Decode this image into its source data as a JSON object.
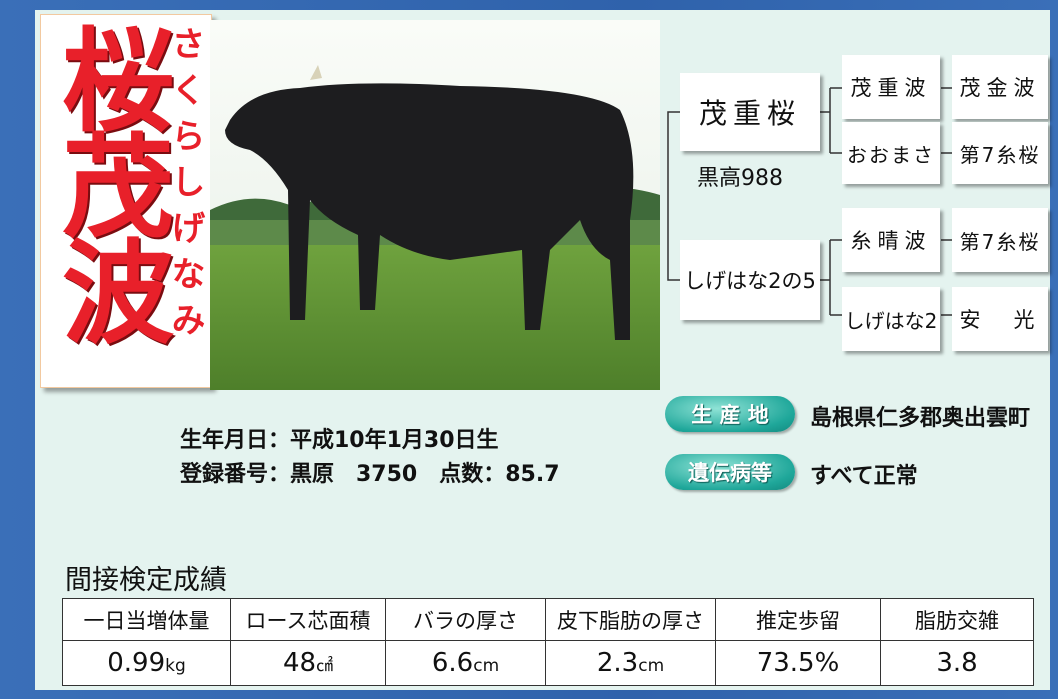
{
  "name": {
    "kanji": "桜茂波",
    "kana": "さくらしげなみ"
  },
  "pedigree": {
    "sire": {
      "name": "茂重桜",
      "registration": "黒高988",
      "parents": [
        {
          "name": "茂重波",
          "sire": "茂金波"
        },
        {
          "name": "おおまさ",
          "sire": "第7糸桜"
        }
      ]
    },
    "dam": {
      "name": "しげはな2の5",
      "parents": [
        {
          "name": "糸晴波",
          "sire": "第7糸桜"
        },
        {
          "name": "しげはな2",
          "sire": "安　光"
        }
      ]
    }
  },
  "info": {
    "birth": "生年月日：平成10年1月30日生",
    "registration": "登録番号：黒原　3750　点数：85.7",
    "origin": {
      "label": "生 産 地",
      "value": "島根県仁多郡奥出雲町"
    },
    "genetic": {
      "label": "遺伝病等",
      "value": "すべて正常"
    }
  },
  "table": {
    "title": "間接検定成績",
    "headers": [
      "一日当増体量",
      "ロース芯面積",
      "バラの厚さ",
      "皮下脂肪の厚さ",
      "推定歩留",
      "脂肪交雑"
    ],
    "cells": [
      [
        "0.99",
        "kg"
      ],
      [
        "48",
        "㎠"
      ],
      [
        "6.6",
        "cm"
      ],
      [
        "2.3",
        "cm"
      ],
      [
        "73.5%"
      ],
      [
        "3.8"
      ]
    ]
  }
}
